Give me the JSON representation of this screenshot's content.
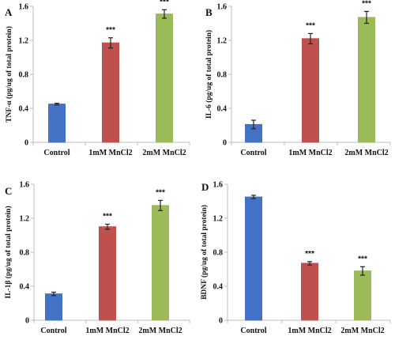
{
  "colors": {
    "control": "#4472c4",
    "mn1": "#c0504d",
    "mn2": "#9bbb59"
  },
  "chart_data": [
    {
      "type": "bar",
      "panel": "A",
      "ylabel": "TNF-α (pg/ug of total protein)",
      "categories": [
        "Control",
        "1mM MnCl2",
        "2mM MnCl2"
      ],
      "values": [
        0.45,
        1.17,
        1.51
      ],
      "errors": [
        0.01,
        0.06,
        0.05
      ],
      "significance": [
        "",
        "***",
        "***"
      ],
      "ylim": [
        0,
        1.6
      ],
      "yticks": [
        "0",
        "0.4",
        "0.8",
        "1.2",
        "1.6"
      ]
    },
    {
      "type": "bar",
      "panel": "B",
      "ylabel": "IL-6 (pg/ug of total protein)",
      "categories": [
        "Control",
        "1mM MnCl2",
        "2mM MnCl2"
      ],
      "values": [
        0.21,
        1.22,
        1.47
      ],
      "errors": [
        0.05,
        0.06,
        0.07
      ],
      "significance": [
        "",
        "***",
        "***"
      ],
      "ylim": [
        0,
        1.6
      ],
      "yticks": [
        "0",
        "0.4",
        "0.8",
        "1.2",
        "1.6"
      ]
    },
    {
      "type": "bar",
      "panel": "C",
      "ylabel": "IL-1β (pg/ug of total protein)",
      "categories": [
        "Control",
        "1mM MnCl2",
        "2mM MnCl2"
      ],
      "values": [
        0.31,
        1.1,
        1.35
      ],
      "errors": [
        0.02,
        0.03,
        0.06
      ],
      "significance": [
        "",
        "***",
        "***"
      ],
      "ylim": [
        0,
        1.6
      ],
      "yticks": [
        "0",
        "0.4",
        "0.8",
        "1.2",
        "1.6"
      ]
    },
    {
      "type": "bar",
      "panel": "D",
      "ylabel": "BDNF (pg/ug of total protein)",
      "categories": [
        "Control",
        "1mM MnCl2",
        "2mM MnCl2"
      ],
      "values": [
        1.45,
        0.67,
        0.58
      ],
      "errors": [
        0.02,
        0.02,
        0.05
      ],
      "significance": [
        "",
        "***",
        "***"
      ],
      "ylim": [
        0,
        1.6
      ],
      "yticks": [
        "0",
        "0.4",
        "0.8",
        "1.2",
        "1.6"
      ]
    }
  ]
}
